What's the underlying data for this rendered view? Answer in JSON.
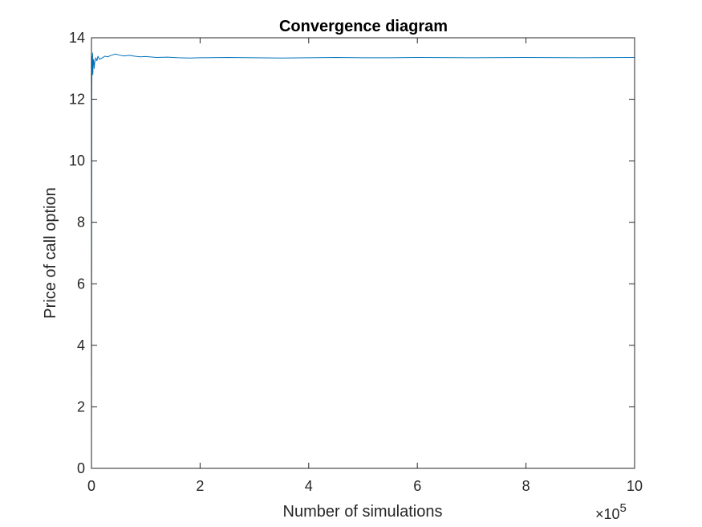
{
  "chart_data": {
    "type": "line",
    "title": "Convergence diagram",
    "xlabel": "Number of simulations",
    "ylabel": "Price of call option",
    "x_scale_label": "×10",
    "x_scale_exponent": "5",
    "xlim": [
      0,
      10
    ],
    "ylim": [
      0,
      14
    ],
    "xticks": [
      0,
      2,
      4,
      6,
      8,
      10
    ],
    "yticks": [
      0,
      2,
      4,
      6,
      8,
      10,
      12,
      14
    ],
    "grid": false,
    "series": [
      {
        "color": "#0072BD",
        "x": [
          0,
          0.005,
          0.01,
          0.015,
          0.02,
          0.025,
          0.03,
          0.04,
          0.05,
          0.06,
          0.08,
          0.1,
          0.12,
          0.15,
          0.2,
          0.25,
          0.3,
          0.35,
          0.4,
          0.45,
          0.5,
          0.6,
          0.7,
          0.8,
          0.9,
          1.0,
          1.2,
          1.4,
          1.6,
          1.8,
          2.0,
          2.5,
          3.0,
          3.5,
          4.0,
          4.5,
          5.0,
          5.5,
          6.0,
          7.0,
          8.0,
          9.0,
          10.0
        ],
        "y": [
          0,
          12.1,
          13.4,
          12.9,
          13.5,
          12.8,
          13.1,
          13.3,
          13.0,
          13.2,
          13.35,
          13.25,
          13.4,
          13.3,
          13.35,
          13.4,
          13.38,
          13.42,
          13.45,
          13.47,
          13.44,
          13.41,
          13.43,
          13.4,
          13.38,
          13.39,
          13.36,
          13.37,
          13.35,
          13.34,
          13.35,
          13.36,
          13.35,
          13.34,
          13.35,
          13.36,
          13.35,
          13.35,
          13.36,
          13.35,
          13.36,
          13.35,
          13.36
        ]
      }
    ]
  }
}
